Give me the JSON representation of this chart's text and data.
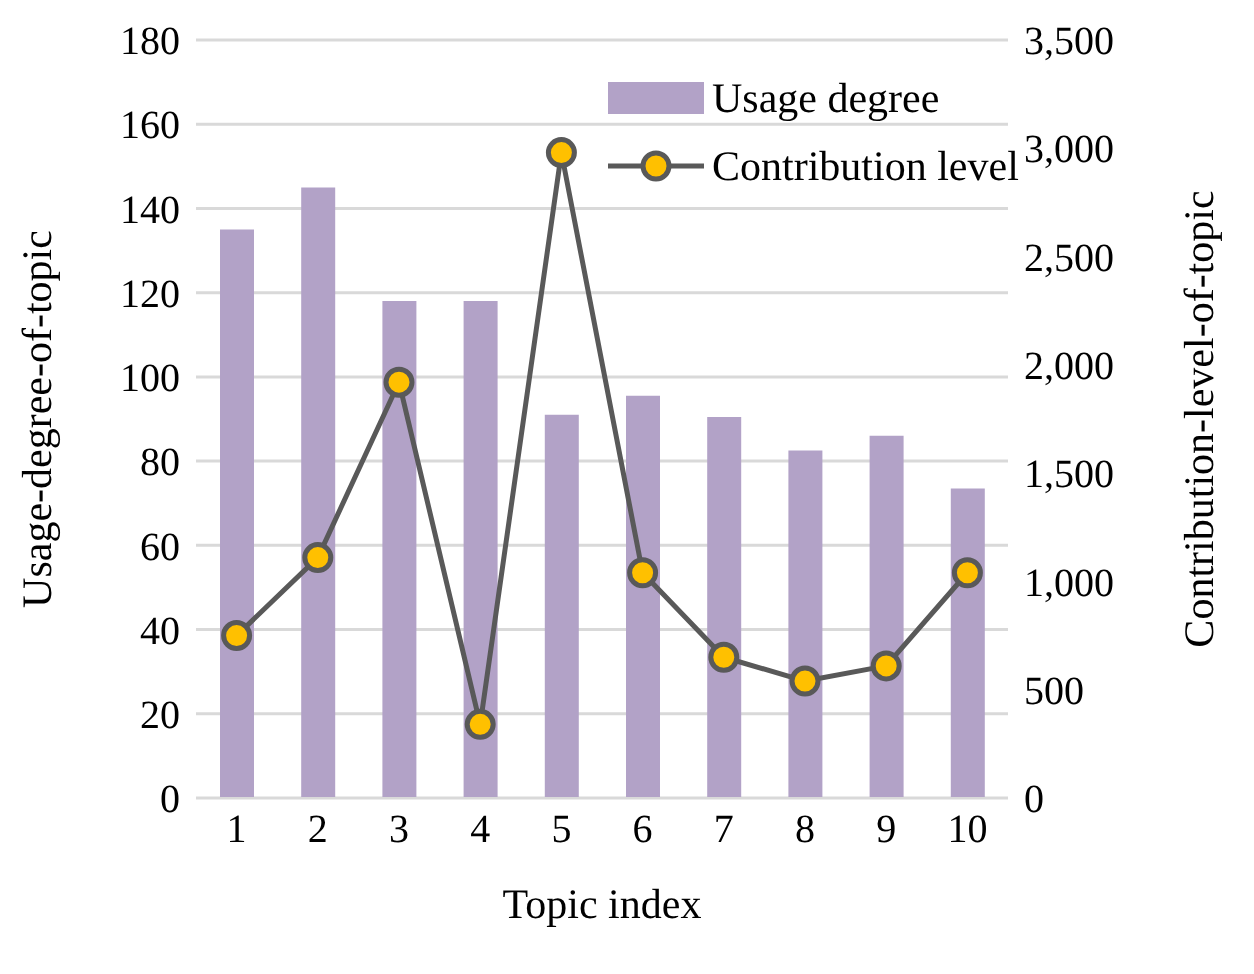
{
  "chart_data": {
    "type": "bar",
    "xlabel": "Topic index",
    "ylabel": "Usage-degree-of-topic",
    "y2label": "Contribution-level-of-topic",
    "categories": [
      "1",
      "2",
      "3",
      "4",
      "5",
      "6",
      "7",
      "8",
      "9",
      "10"
    ],
    "series": [
      {
        "name": "Usage degree",
        "color": "#b2a2c7",
        "values": [
          135,
          145,
          118,
          118,
          91,
          95.5,
          90.5,
          82.5,
          86,
          73.5
        ]
      },
      {
        "name": "Contribution level",
        "type": "line",
        "axis": "y2",
        "color": "#595959",
        "marker": "circle",
        "values": [
          750,
          1110,
          1920,
          340,
          2980,
          1040,
          650,
          540,
          610,
          1040
        ]
      }
    ],
    "ylim": [
      0,
      180
    ],
    "yticks": [
      0,
      20,
      40,
      60,
      80,
      100,
      120,
      140,
      160,
      180
    ],
    "y2lim": [
      0,
      3500
    ],
    "y2ticks": [
      {
        "value": 0,
        "label": "0"
      },
      {
        "value": 500,
        "label": "500"
      },
      {
        "value": 1000,
        "label": "1,000"
      },
      {
        "value": 1500,
        "label": "1,500"
      },
      {
        "value": 2000,
        "label": "2,000"
      },
      {
        "value": 2500,
        "label": "2,500"
      },
      {
        "value": 3000,
        "label": "3,000"
      },
      {
        "value": 3500,
        "label": "3,500"
      }
    ],
    "grid": "y",
    "legend": "top right"
  }
}
